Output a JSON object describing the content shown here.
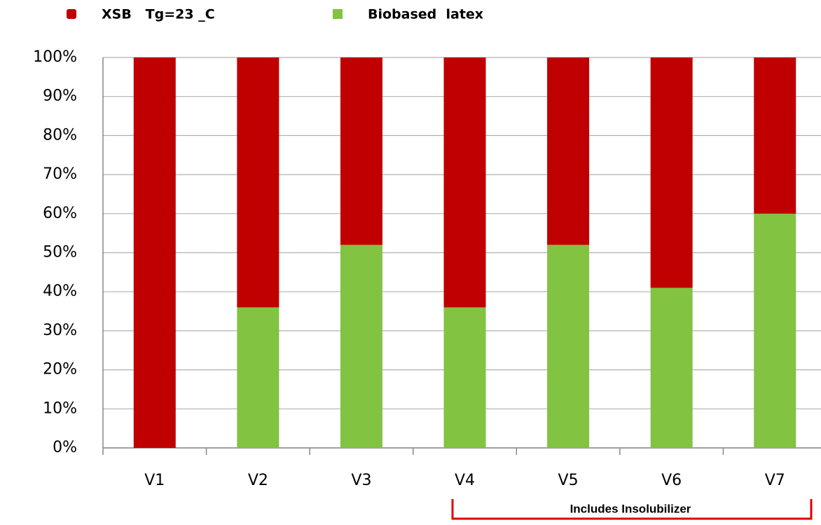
{
  "chart_data": {
    "type": "stacked_bar",
    "categories": [
      "V1",
      "V2",
      "V3",
      "V4",
      "V5",
      "V6",
      "V7"
    ],
    "series": [
      {
        "name": "XSB   Tg=23 _C",
        "color": "#c00000",
        "values": [
          100,
          64,
          48,
          64,
          48,
          59,
          40
        ]
      },
      {
        "name": "Biobased  latex",
        "color": "#82c341",
        "values": [
          0,
          36,
          52,
          36,
          52,
          41,
          60
        ]
      }
    ],
    "ylim": [
      0,
      100
    ],
    "yticks": [
      {
        "value": 0,
        "label": "0%"
      },
      {
        "value": 10,
        "label": "10%"
      },
      {
        "value": 20,
        "label": "20%"
      },
      {
        "value": 30,
        "label": "30%"
      },
      {
        "value": 40,
        "label": "40%"
      },
      {
        "value": 50,
        "label": "50%"
      },
      {
        "value": 60,
        "label": "60%"
      },
      {
        "value": 70,
        "label": "70%"
      },
      {
        "value": 80,
        "label": "80%"
      },
      {
        "value": 90,
        "label": "90%"
      },
      {
        "value": 100,
        "label": "100%"
      }
    ],
    "grid": true,
    "legend": "top",
    "annotation": "Includes Insolubilizer"
  }
}
